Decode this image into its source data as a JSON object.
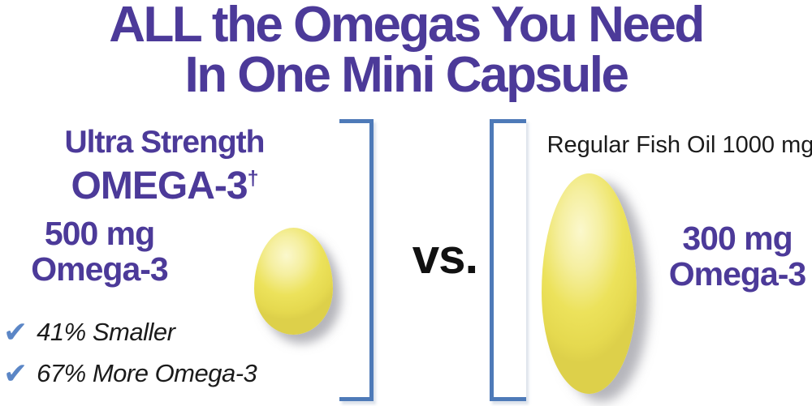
{
  "title": {
    "line1": "ALL the Omegas You Need",
    "line2": "In One Mini Capsule"
  },
  "left": {
    "heading_line1": "Ultra Strength",
    "heading_line2": "OMEGA-3",
    "heading_dagger": "†",
    "amount_line1": "500 mg",
    "amount_line2": "Omega-3",
    "check_glyph": "✔",
    "benefits": [
      "41% Smaller",
      "67% More Omega-3"
    ],
    "capsule_icon": "small-softgel-capsule"
  },
  "center": {
    "vs_label": "vs."
  },
  "right": {
    "heading": "Regular Fish Oil 1000 mg",
    "amount_line1": "300 mg",
    "amount_line2": "Omega-3",
    "capsule_icon": "large-softgel-capsule"
  },
  "colors": {
    "purple": "#4c3a99",
    "check_blue": "#5b86c6",
    "bracket_blue": "#4e7ab8",
    "text_black": "#1b1b1b",
    "capsule_yellow": "#ece25b",
    "capsule_highlight": "#fbf8cd",
    "capsule_edge": "#ddd04a",
    "capsule_shadow": "#6e6e7a"
  }
}
